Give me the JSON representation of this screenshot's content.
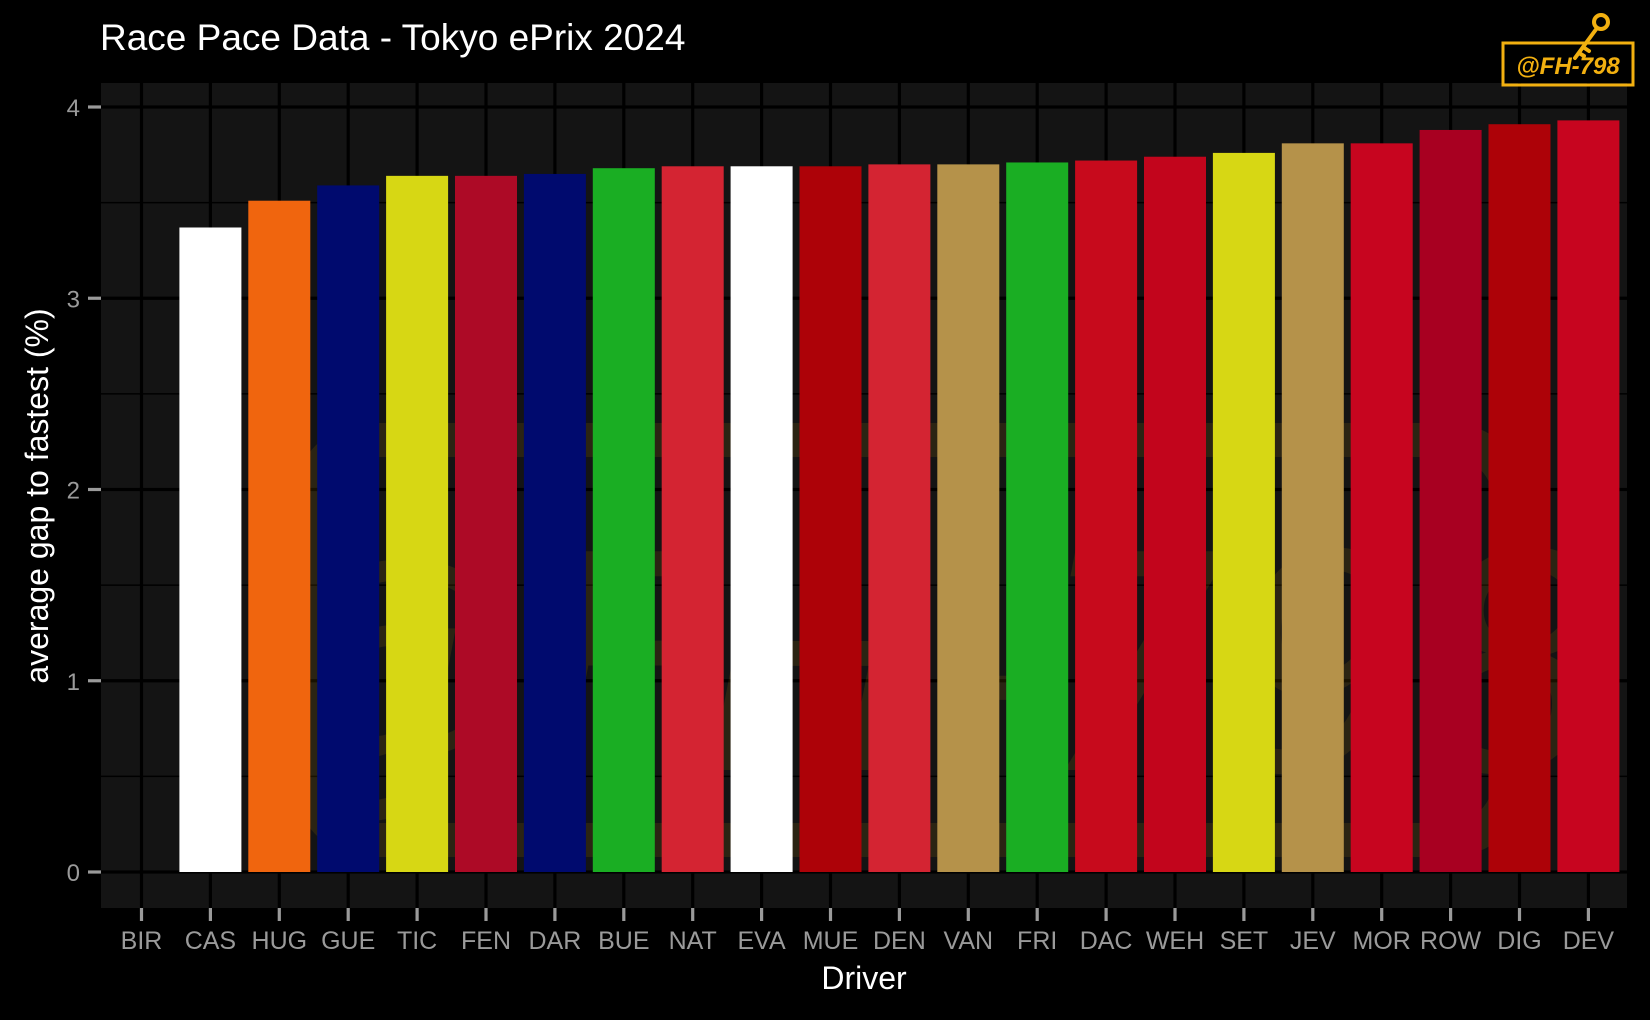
{
  "chart_data": {
    "type": "bar",
    "title": "Race Pace Data - Tokyo ePrix 2024",
    "xlabel": "Driver",
    "ylabel": "average gap to fastest (%)",
    "ylim": [
      0,
      4.1
    ],
    "yticks": [
      0,
      1,
      2,
      3,
      4
    ],
    "grid": true,
    "legend": "none",
    "categories": [
      "BIR",
      "CAS",
      "HUG",
      "GUE",
      "TIC",
      "FEN",
      "DAR",
      "BUE",
      "NAT",
      "EVA",
      "MUE",
      "DEN",
      "VAN",
      "FRI",
      "DAC",
      "WEH",
      "SET",
      "JEV",
      "MOR",
      "ROW",
      "DIG",
      "DEV"
    ],
    "values": [
      null,
      3.37,
      3.51,
      3.59,
      3.64,
      3.64,
      3.65,
      3.68,
      3.69,
      3.69,
      3.69,
      3.7,
      3.7,
      3.71,
      3.72,
      3.74,
      3.76,
      3.81,
      3.81,
      3.88,
      3.91,
      3.93
    ],
    "colors": [
      "#000000",
      "#FFFFFF",
      "#F0650E",
      "#000A6E",
      "#D7D714",
      "#AD0A26",
      "#000A6E",
      "#1AAE23",
      "#D42432",
      "#FFFFFF",
      "#AD0208",
      "#D42432",
      "#B5924A",
      "#1AAE23",
      "#C70A1C",
      "#C2051C",
      "#D7D714",
      "#B5924A",
      "#C7051F",
      "#A80021",
      "#AD0208",
      "#C7051F"
    ]
  },
  "watermark": {
    "text": "@FH-798",
    "color": "#F2B010"
  },
  "colors": {
    "background": "#000000",
    "panel": "#141414",
    "grid": "#000000",
    "axis_text": "#9A9A9A",
    "label_text": "#FFFFFF"
  }
}
